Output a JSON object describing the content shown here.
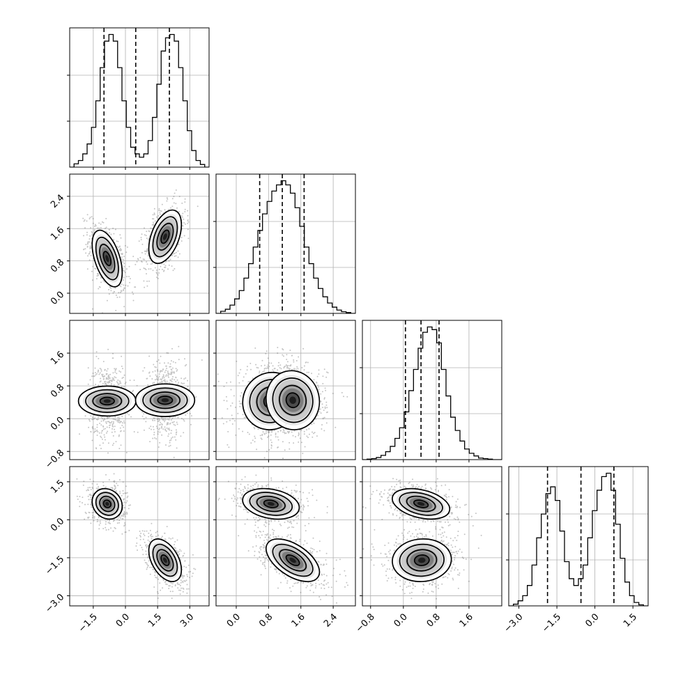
{
  "chart_data": {
    "type": "corner",
    "title": "",
    "parameters": 4,
    "grid": true,
    "axes": [
      {
        "ticks": [
          -1.5,
          0.0,
          1.5,
          3.0
        ],
        "tick_labels": [
          "−1.5",
          "0.0",
          "1.5",
          "3.0"
        ],
        "range": [
          -2.6,
          3.9
        ]
      },
      {
        "ticks": [
          0.0,
          0.8,
          1.6,
          2.4
        ],
        "tick_labels": [
          "0.0",
          "0.8",
          "1.6",
          "2.4"
        ],
        "range": [
          -0.5,
          2.95
        ]
      },
      {
        "ticks": [
          -0.8,
          0.0,
          0.8,
          1.6
        ],
        "tick_labels": [
          "−0.8",
          "0.0",
          "0.8",
          "1.6"
        ],
        "range": [
          -1.0,
          2.4
        ]
      },
      {
        "ticks": [
          -3.0,
          -1.5,
          0.0,
          1.5
        ],
        "tick_labels": [
          "−3.0",
          "−1.5",
          "0.0",
          "1.5"
        ],
        "range": [
          -3.4,
          2.1
        ]
      }
    ],
    "marginals": [
      {
        "quantiles": [
          -1.0,
          0.48,
          2.05
        ],
        "counts": [
          0,
          1,
          2,
          4,
          7,
          12,
          20,
          30,
          38,
          40,
          38,
          30,
          20,
          12,
          6,
          4,
          3,
          4,
          8,
          15,
          25,
          35,
          39,
          40,
          38,
          30,
          20,
          11,
          5,
          2,
          0.8,
          0
        ]
      },
      {
        "quantiles": [
          0.58,
          1.14,
          1.68
        ],
        "counts": [
          0,
          0.5,
          1,
          2,
          3.5,
          5.5,
          8.5,
          12,
          16,
          20,
          24,
          27,
          29.5,
          31,
          32,
          31,
          29,
          25.5,
          21,
          16,
          12,
          8.5,
          6,
          4,
          2.5,
          1.5,
          0.8,
          0.4,
          0.2,
          0
        ]
      },
      {
        "quantiles": [
          0.05,
          0.43,
          0.87
        ],
        "counts": [
          0,
          0.1,
          0.2,
          0.4,
          0.8,
          1.5,
          2.5,
          4,
          6,
          9,
          13,
          17,
          21,
          24,
          25,
          24.5,
          22,
          17,
          12,
          8,
          5.5,
          3.5,
          2,
          1.2,
          0.7,
          0.3,
          0.2,
          0.1,
          0,
          0
        ]
      },
      {
        "quantiles": [
          -1.87,
          -0.55,
          0.75
        ],
        "counts": [
          0,
          0.5,
          1.5,
          3,
          6,
          12,
          20,
          27,
          33,
          35,
          31,
          22,
          13,
          8,
          6,
          8,
          12,
          20,
          28,
          34,
          38,
          39,
          34,
          24,
          14,
          7,
          3,
          1,
          0.3,
          0
        ]
      }
    ],
    "clusters": [
      {
        "center": [
          -0.85,
          0.86,
          0.43,
          0.63
        ],
        "sd": [
          0.35,
          0.35,
          0.35,
          0.3
        ],
        "corr": [
          [
            0,
            1,
            -0.5
          ],
          [
            0,
            3,
            -0.15
          ],
          [
            1,
            2,
            0.05
          ],
          [
            1,
            3,
            -0.25
          ],
          [
            2,
            3,
            -0.35
          ]
        ]
      },
      {
        "center": [
          1.85,
          1.4,
          0.45,
          -1.6
        ],
        "sd": [
          0.38,
          0.33,
          0.36,
          0.42
        ],
        "corr": [
          [
            0,
            1,
            0.45
          ],
          [
            0,
            3,
            -0.45
          ],
          [
            1,
            2,
            -0.05
          ],
          [
            1,
            3,
            -0.55
          ],
          [
            2,
            3,
            0.05
          ]
        ]
      }
    ]
  }
}
